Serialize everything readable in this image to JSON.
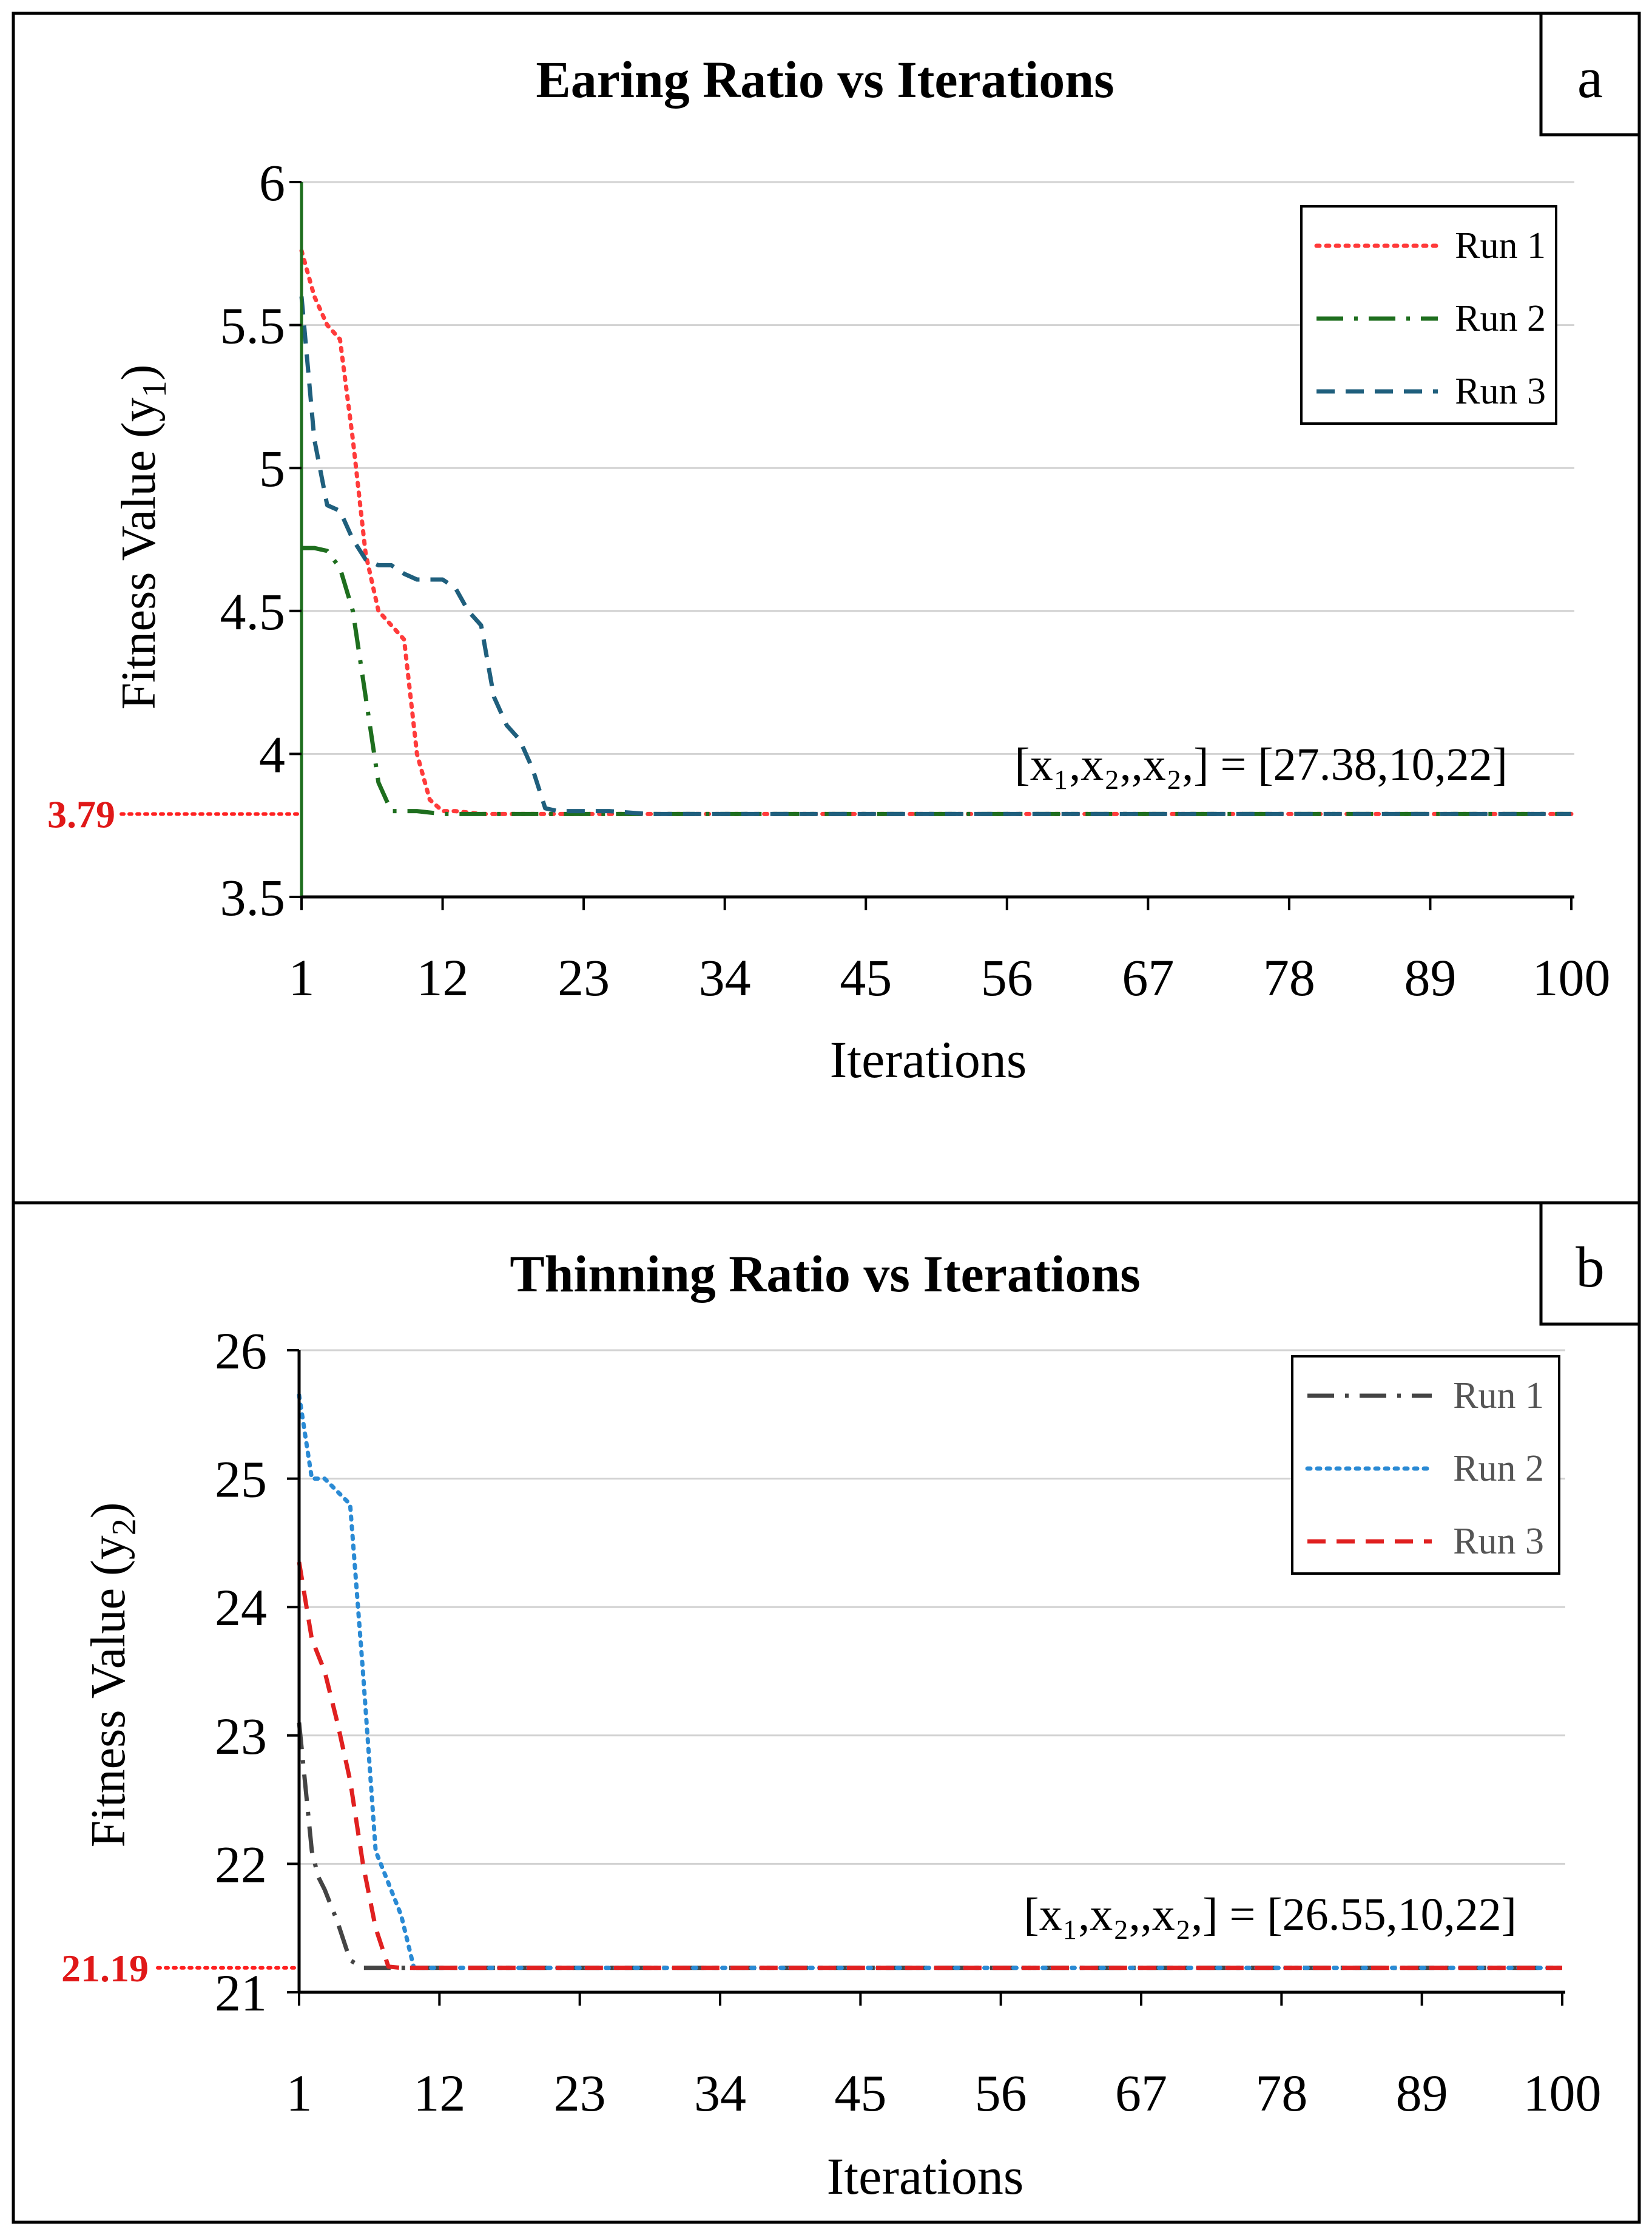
{
  "chart_data": [
    {
      "type": "line",
      "panel_label": "a",
      "title": "Earing Ratio vs Iterations",
      "xlabel": "Iterations",
      "ylabel": "Fitness Value (y",
      "ylabel_sub": "1",
      "ylabel_close": ")",
      "xlim": [
        1,
        100
      ],
      "ylim": [
        3.5,
        6
      ],
      "grid": true,
      "x_ticks": [
        1,
        12,
        23,
        34,
        45,
        56,
        67,
        78,
        89,
        100
      ],
      "x_tick_labels": [
        "1",
        "12",
        "23",
        "34",
        "45",
        "56",
        "67",
        "78",
        "89",
        "100"
      ],
      "y_ticks": [
        3.5,
        4,
        4.5,
        5,
        5.5,
        6
      ],
      "y_tick_labels": [
        "3.5",
        "4",
        "4.5",
        "5",
        "5.5",
        "6"
      ],
      "optimum_value": 3.79,
      "optimum_label": "3.79",
      "annotation": "[x₁,x₂,,x₂,] = [27.38,10,22]",
      "legend_position": "top-right",
      "series": [
        {
          "name": "Run 1",
          "color": "#ff3b3b",
          "dash": "dotted",
          "x": [
            1,
            2,
            3,
            4,
            5,
            6,
            7,
            8,
            9,
            10,
            11,
            12,
            13,
            15,
            17,
            20,
            100
          ],
          "values": [
            5.76,
            5.6,
            5.5,
            5.45,
            5.1,
            4.7,
            4.5,
            4.45,
            4.4,
            4.0,
            3.84,
            3.8,
            3.8,
            3.79,
            3.79,
            3.79,
            3.79
          ]
        },
        {
          "name": "Run 2",
          "color": "#1e6e1e",
          "dash": "dashdot",
          "x": [
            1,
            2,
            3,
            4,
            5,
            6,
            7,
            8,
            9,
            10,
            12,
            20,
            100
          ],
          "values": [
            4.72,
            4.72,
            4.71,
            4.65,
            4.5,
            4.2,
            3.9,
            3.8,
            3.8,
            3.8,
            3.79,
            3.79,
            3.79
          ]
        },
        {
          "name": "Run 3",
          "color": "#1f5f7d",
          "dash": "dashed",
          "x": [
            1,
            2,
            3,
            4,
            5,
            6,
            7,
            8,
            9,
            10,
            11,
            12,
            13,
            14,
            15,
            16,
            17,
            18,
            19,
            20,
            21,
            22,
            25,
            28,
            100
          ],
          "values": [
            5.6,
            5.1,
            4.87,
            4.85,
            4.75,
            4.68,
            4.66,
            4.66,
            4.63,
            4.61,
            4.61,
            4.61,
            4.58,
            4.5,
            4.45,
            4.2,
            4.1,
            4.05,
            3.95,
            3.81,
            3.8,
            3.8,
            3.8,
            3.79,
            3.79
          ]
        }
      ]
    },
    {
      "type": "line",
      "panel_label": "b",
      "title": "Thinning Ratio vs Iterations",
      "xlabel": "Iterations",
      "ylabel": "Fitness Value (y",
      "ylabel_sub": "2",
      "ylabel_close": ")",
      "xlim": [
        1,
        100
      ],
      "ylim": [
        21,
        26
      ],
      "grid": true,
      "x_ticks": [
        1,
        12,
        23,
        34,
        45,
        56,
        67,
        78,
        89,
        100
      ],
      "x_tick_labels": [
        "1",
        "12",
        "23",
        "34",
        "45",
        "56",
        "67",
        "78",
        "89",
        "100"
      ],
      "y_ticks": [
        21,
        22,
        23,
        24,
        25,
        26
      ],
      "y_tick_labels": [
        "21",
        "22",
        "23",
        "24",
        "25",
        "26"
      ],
      "optimum_value": 21.19,
      "optimum_label": "21.19",
      "annotation": "[x₁,x₂,,x₂,] = [26.55,10,22]",
      "legend_position": "top-right",
      "series": [
        {
          "name": "Run 1",
          "color": "#444444",
          "dash": "dashdot",
          "x": [
            1,
            1.5,
            2,
            2.5,
            3,
            4,
            5,
            6,
            7,
            100
          ],
          "values": [
            23.1,
            22.6,
            22.1,
            21.9,
            21.8,
            21.55,
            21.25,
            21.19,
            21.19,
            21.19
          ]
        },
        {
          "name": "Run 2",
          "color": "#2a8ad4",
          "dash": "dotted",
          "x": [
            1,
            2,
            3,
            4,
            5,
            6,
            7,
            8,
            9,
            10,
            11,
            100
          ],
          "values": [
            25.65,
            25.0,
            25.0,
            24.9,
            24.8,
            23.5,
            22.1,
            21.85,
            21.6,
            21.19,
            21.19,
            21.19
          ]
        },
        {
          "name": "Run 3",
          "color": "#e02020",
          "dash": "dashed",
          "x": [
            1,
            2,
            3,
            4,
            5,
            6,
            7,
            8,
            9,
            100
          ],
          "values": [
            24.35,
            23.75,
            23.5,
            23.1,
            22.65,
            22.0,
            21.5,
            21.2,
            21.19,
            21.19
          ]
        }
      ]
    }
  ]
}
